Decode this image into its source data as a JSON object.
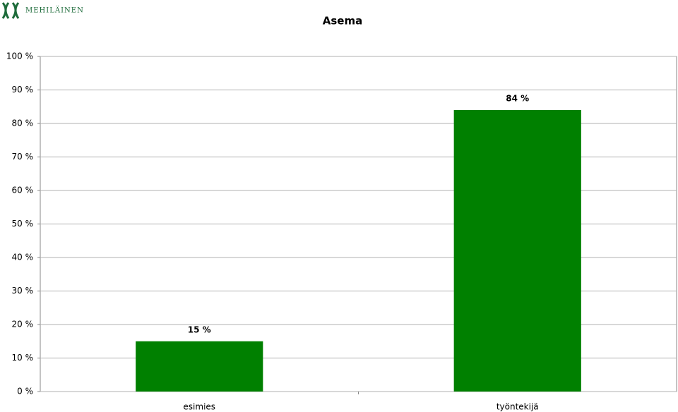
{
  "logo": "MEHILÄINEN",
  "chart_data": {
    "type": "bar",
    "title": "Asema",
    "categories": [
      "esimies",
      "työntekijä"
    ],
    "values": [
      15,
      84
    ],
    "value_labels": [
      "15 %",
      "84 %"
    ],
    "color": "#008000",
    "ylim": [
      0,
      100
    ],
    "yticks": [
      {
        "value": 0,
        "label": "0 %"
      },
      {
        "value": 10,
        "label": "10 %"
      },
      {
        "value": 20,
        "label": "20 %"
      },
      {
        "value": 30,
        "label": "30 %"
      },
      {
        "value": 40,
        "label": "40 %"
      },
      {
        "value": 50,
        "label": "50 %"
      },
      {
        "value": 60,
        "label": "60 %"
      },
      {
        "value": 70,
        "label": "70 %"
      },
      {
        "value": 80,
        "label": "80 %"
      },
      {
        "value": 90,
        "label": "90 %"
      },
      {
        "value": 100,
        "label": "100 %"
      }
    ],
    "grid": true
  }
}
